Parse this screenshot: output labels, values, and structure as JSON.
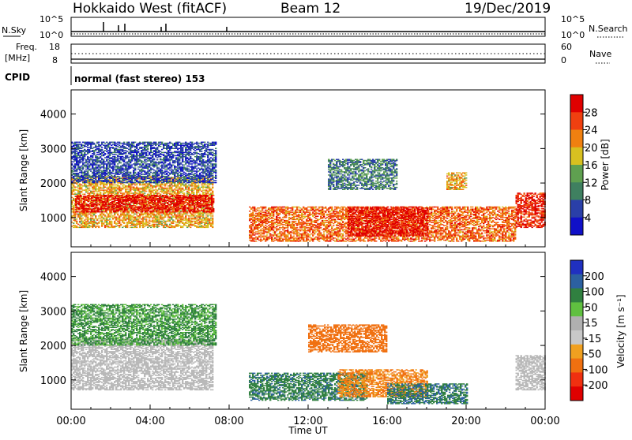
{
  "header": {
    "station": "Hokkaido West (fitACF)",
    "beam": "Beam 12",
    "date": "19/Dec/2019"
  },
  "status_panels": {
    "nsky_label": "N.Sky",
    "nsky_ticks": [
      "10^5",
      "10^0"
    ],
    "nsearch_label": "N.Search",
    "nsearch_ticks": [
      "10^5",
      "10^0"
    ],
    "freq_label_1": "Freq.",
    "freq_label_2": "[MHz]",
    "freq_ticks": [
      "18",
      "8"
    ],
    "nave_label": "Nave",
    "nave_ticks": [
      "60",
      "0"
    ],
    "cpid_label": "CPID",
    "cpid_text": "normal (fast stereo) 153"
  },
  "colors": {
    "power_scale": [
      "#1010c8",
      "#2a3fa8",
      "#3f8060",
      "#5fa050",
      "#d8c020",
      "#f08010",
      "#f04010",
      "#e00000"
    ],
    "velocity_scale": [
      "#2030c0",
      "#2c60a0",
      "#308040",
      "#60c040",
      "#b0b0b0",
      "#c8c8c8",
      "#f0a020",
      "#f07010",
      "#f03010",
      "#e00000"
    ],
    "ground_scatter": "#b8b8b8"
  },
  "chart_data": [
    {
      "type": "heatmap",
      "panel": "power",
      "xlabel": "",
      "ylabel": "Slant Range [km]",
      "x_ticks": [
        "00:00",
        "04:00",
        "08:00",
        "12:00",
        "16:00",
        "20:00",
        "00:00"
      ],
      "y_ticks": [
        1000,
        2000,
        3000,
        4000
      ],
      "ylim": [
        150,
        4700
      ],
      "xlim_hours": [
        0,
        24
      ],
      "colorbar": {
        "label": "Power [dB]",
        "ticks": [
          4,
          8,
          12,
          16,
          20,
          24,
          28
        ],
        "range": [
          0,
          32
        ]
      },
      "regions": [
        {
          "t0": 0.0,
          "t1": 7.2,
          "r0": 700,
          "r1": 2200,
          "value": 20
        },
        {
          "t0": 0.2,
          "t1": 7.2,
          "r0": 1150,
          "r1": 1650,
          "value": 30
        },
        {
          "t0": 0.0,
          "t1": 7.3,
          "r0": 2000,
          "r1": 3200,
          "value": 6
        },
        {
          "t0": 9.0,
          "t1": 22.5,
          "r0": 300,
          "r1": 1300,
          "value": 24
        },
        {
          "t0": 14.0,
          "t1": 18.0,
          "r0": 450,
          "r1": 1300,
          "value": 30
        },
        {
          "t0": 13.0,
          "t1": 16.5,
          "r0": 1800,
          "r1": 2700,
          "value": 10
        },
        {
          "t0": 19.0,
          "t1": 20.0,
          "r0": 1800,
          "r1": 2300,
          "value": 20
        },
        {
          "t0": 22.5,
          "t1": 24.0,
          "r0": 700,
          "r1": 1700,
          "value": 28
        }
      ]
    },
    {
      "type": "heatmap",
      "panel": "velocity",
      "xlabel": "Time UT",
      "ylabel": "Slant Range [km]",
      "x_ticks": [
        "00:00",
        "04:00",
        "08:00",
        "12:00",
        "16:00",
        "20:00",
        "00:00"
      ],
      "y_ticks": [
        1000,
        2000,
        3000,
        4000
      ],
      "ylim": [
        150,
        4700
      ],
      "xlim_hours": [
        0,
        24
      ],
      "colorbar": {
        "label": "Velocity [m s⁻¹]",
        "ticks": [
          200,
          100,
          50,
          15,
          -15,
          -50,
          -100,
          -200
        ]
      },
      "regions": [
        {
          "t0": 0.0,
          "t1": 7.2,
          "r0": 700,
          "r1": 2200,
          "value": "ground"
        },
        {
          "t0": 0.0,
          "t1": 7.3,
          "r0": 2000,
          "r1": 3200,
          "value": 40
        },
        {
          "t0": 9.0,
          "t1": 15.0,
          "r0": 400,
          "r1": 1200,
          "value": 60
        },
        {
          "t0": 13.5,
          "t1": 18.0,
          "r0": 500,
          "r1": 1300,
          "value": -80
        },
        {
          "t0": 16.0,
          "t1": 20.0,
          "r0": 300,
          "r1": 900,
          "value": 70
        },
        {
          "t0": 12.0,
          "t1": 16.0,
          "r0": 1800,
          "r1": 2600,
          "value": -120
        },
        {
          "t0": 22.5,
          "t1": 24.0,
          "r0": 700,
          "r1": 1700,
          "value": "ground"
        }
      ]
    }
  ]
}
